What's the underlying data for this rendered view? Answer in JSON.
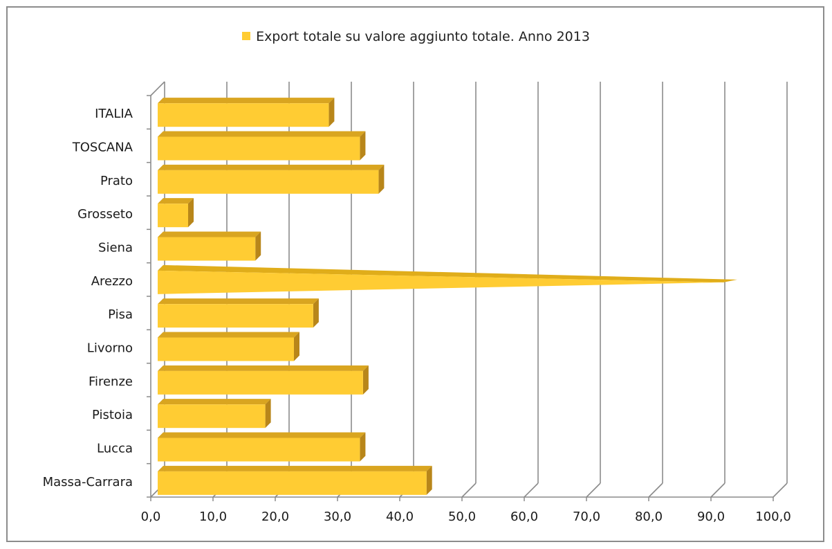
{
  "chart_data": {
    "type": "bar",
    "orientation": "horizontal",
    "title": "",
    "legend": {
      "label": "Export totale su valore aggiunto totale. Anno 2013",
      "position": "top"
    },
    "categories": [
      "ITALIA",
      "TOSCANA",
      "Prato",
      "Grosseto",
      "Siena",
      "Arezzo",
      "Pisa",
      "Livorno",
      "Firenze",
      "Pistoia",
      "Lucca",
      "Massa-Carrara"
    ],
    "series": [
      {
        "name": "Export totale su valore aggiunto totale. Anno 2013",
        "values": [
          28.6,
          33.6,
          36.6,
          6.0,
          16.8,
          92.0,
          26.1,
          23.0,
          34.1,
          18.4,
          33.6,
          44.3
        ],
        "color": "#ffcc33"
      }
    ],
    "x_ticks": [
      "0,0",
      "10,0",
      "20,0",
      "30,0",
      "40,0",
      "50,0",
      "60,0",
      "70,0",
      "80,0",
      "90,0",
      "100,0"
    ],
    "xlim": [
      0,
      100
    ],
    "grid": true,
    "style": "3d"
  }
}
